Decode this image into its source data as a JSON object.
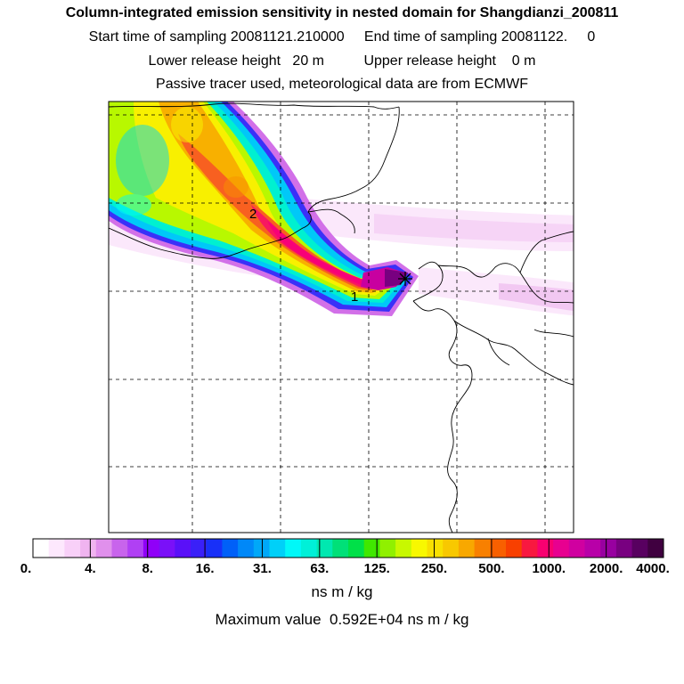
{
  "header": {
    "title": "Column-integrated emission sensitivity in nested domain for Shangdianzi_200811",
    "sampling_line": "Start time of sampling 20081121.210000     End time of sampling 20081122.     0",
    "release_line": "Lower release height   20 m          Upper release height    0 m",
    "tracer_line": "Passive tracer used, meteorological data are from ECMWF"
  },
  "map": {
    "markers": [
      {
        "label": "2"
      },
      {
        "label": "1"
      }
    ],
    "receptor_symbol": "star-marker"
  },
  "legend": {
    "tick_labels": [
      "0.",
      "4.",
      "8.",
      "16.",
      "31.",
      "63.",
      "125.",
      "250.",
      "500.",
      "1000.",
      "2000.",
      "4000."
    ],
    "units": "ns m / kg",
    "max_value_text": "Maximum value  0.592E+04 ns m / kg",
    "colors": [
      "#ffffff",
      "#fde8fd",
      "#f8d0f8",
      "#f0b4f0",
      "#e090ec",
      "#c864ec",
      "#b040f4",
      "#9000f8",
      "#7a10f8",
      "#5a10f8",
      "#3a20f8",
      "#1830f8",
      "#0060f8",
      "#0088f8",
      "#00a8f8",
      "#00d0f8",
      "#00f8f8",
      "#00f0d8",
      "#00e8b0",
      "#00e078",
      "#00e048",
      "#40e800",
      "#90f000",
      "#c8f800",
      "#f8f800",
      "#f8e000",
      "#f8c800",
      "#f8a800",
      "#f88000",
      "#f86000",
      "#f84000",
      "#f81840",
      "#f80070",
      "#e80090",
      "#d000a0",
      "#b800a8",
      "#9800a0",
      "#780080",
      "#580060",
      "#400040"
    ]
  }
}
